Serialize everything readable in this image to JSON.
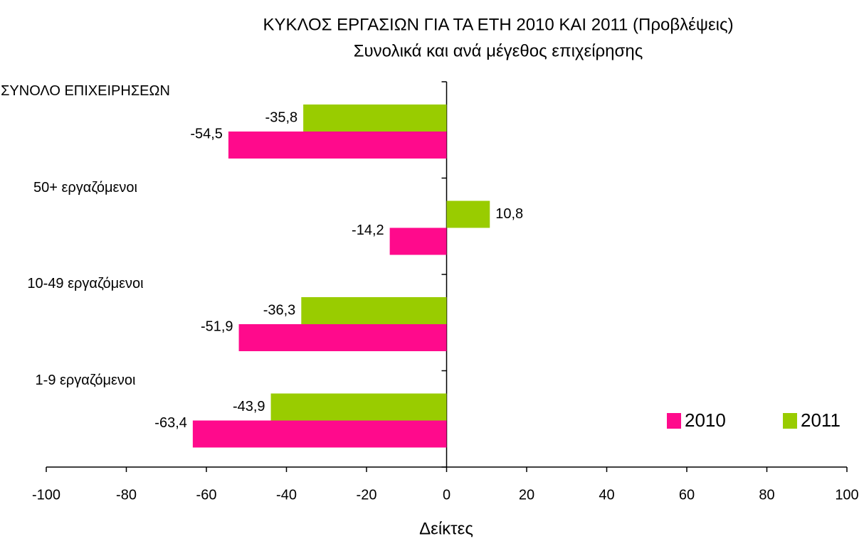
{
  "chart_data": {
    "type": "barh",
    "title": "ΚΥΚΛΟΣ ΕΡΓΑΣΙΩΝ ΓΙΑ ΤΑ ΕΤΗ 2010 ΚΑΙ 2011 (Προβλέψεις)",
    "subtitle": "Συνολικά και ανά μέγεθος επιχείρησης",
    "xlabel": "Δείκτες",
    "categories": [
      "ΣΥΝΟΛΟ ΕΠΙΧΕΙΡΗΣΕΩΝ",
      "50+ εργαζόμενοι",
      "10-49 εργαζόμενοι",
      "1-9 εργαζόμενοι"
    ],
    "series": [
      {
        "name": "2010",
        "color": "#ff0a8c",
        "values": [
          -54.5,
          -14.2,
          -51.9,
          -63.4
        ],
        "value_labels": [
          "-54,5",
          "-14,2",
          "-51,9",
          "-63,4"
        ]
      },
      {
        "name": "2011",
        "color": "#99cc00",
        "values": [
          -35.8,
          10.8,
          -36.3,
          -43.9
        ],
        "value_labels": [
          "-35,8",
          "10,8",
          "-36,3",
          "-43,9"
        ]
      }
    ],
    "xlim": [
      -100,
      100
    ],
    "xticks": [
      -100,
      -80,
      -60,
      -40,
      -20,
      0,
      20,
      40,
      60,
      80,
      100
    ],
    "legend": "lower right",
    "grid": false
  }
}
